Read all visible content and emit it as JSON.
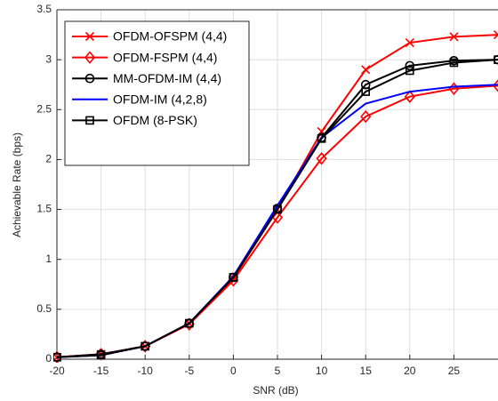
{
  "chart_data": {
    "type": "line",
    "xlabel": "SNR (dB)",
    "ylabel": "Achievable Rate (bps)",
    "x": [
      -20,
      -15,
      -10,
      -5,
      0,
      5,
      10,
      15,
      20,
      25,
      30
    ],
    "series": [
      {
        "name": "OFDM-OFSPM (4,4)",
        "color": "#ff0000",
        "marker": "x",
        "values": [
          0.02,
          0.05,
          0.13,
          0.36,
          0.81,
          1.5,
          2.28,
          2.9,
          3.17,
          3.23,
          3.25
        ]
      },
      {
        "name": "OFDM-FSPM (4,4)",
        "color": "#ff0000",
        "marker": "diamond",
        "values": [
          0.02,
          0.05,
          0.13,
          0.35,
          0.79,
          1.42,
          2.01,
          2.43,
          2.63,
          2.71,
          2.74
        ]
      },
      {
        "name": "MM-OFDM-IM (4,4)",
        "color": "#000000",
        "marker": "circle",
        "values": [
          0.02,
          0.05,
          0.13,
          0.36,
          0.82,
          1.51,
          2.22,
          2.75,
          2.94,
          2.99,
          3.0
        ]
      },
      {
        "name": "OFDM-IM (4,2,8)",
        "color": "#0000ff",
        "marker": "none",
        "values": [
          0.02,
          0.04,
          0.13,
          0.36,
          0.83,
          1.54,
          2.22,
          2.56,
          2.68,
          2.73,
          2.75
        ]
      },
      {
        "name": "OFDM (8-PSK)",
        "color": "#000000",
        "marker": "square",
        "values": [
          0.02,
          0.04,
          0.13,
          0.36,
          0.82,
          1.5,
          2.21,
          2.68,
          2.89,
          2.97,
          3.0
        ]
      }
    ],
    "xlim": [
      -20,
      30
    ],
    "xticks": [
      -20,
      -15,
      -10,
      -5,
      0,
      5,
      10,
      15,
      20,
      25
    ],
    "ylim": [
      0,
      3.5
    ],
    "yticks": [
      0,
      0.5,
      1,
      1.5,
      2,
      2.5,
      3,
      3.5
    ],
    "grid": true,
    "legend": "upper left"
  }
}
